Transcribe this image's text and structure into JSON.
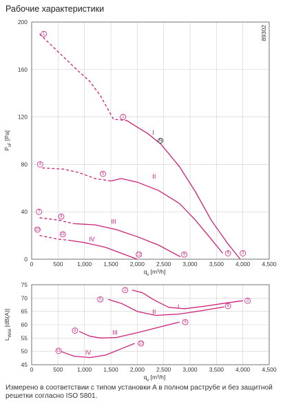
{
  "title": "Рабочие характеристики",
  "footnote": "Измерено в соответствии с типом установки A в полном раструбе и без защитной решетки согласно ISO 5801.",
  "chart_data": [
    {
      "type": "line",
      "id": "pressure",
      "ylabel": "P_sF [Pa]",
      "xlabel": "q_v [m³/h]",
      "xlim": [
        0,
        4500
      ],
      "ylim": [
        0,
        200
      ],
      "xticks": [
        0,
        500,
        1000,
        1500,
        2000,
        2500,
        3000,
        3500,
        4000,
        4500
      ],
      "yticks": [
        0,
        40,
        80,
        120,
        160,
        200
      ],
      "x_tick_labels": [
        "0",
        "500",
        "1,000",
        "1,500",
        "2,000",
        "2,500",
        "3,000",
        "3,500",
        "4,000",
        "4,500"
      ],
      "y_tick_labels": [
        "0",
        "40",
        "80",
        "120",
        "160",
        "200"
      ],
      "grid": true,
      "code": "89302",
      "series": [
        {
          "name": "I",
          "label_at": [
            2300,
            105
          ],
          "dashed": [
            [
              150,
              190
            ],
            [
              500,
              175
            ],
            [
              900,
              158
            ],
            [
              1100,
              150
            ],
            [
              1300,
              138
            ],
            [
              1450,
              126
            ],
            [
              1550,
              118
            ],
            [
              1800,
              117
            ]
          ],
          "solid": [
            [
              1800,
              117
            ],
            [
              2050,
              110
            ],
            [
              2200,
              106
            ],
            [
              2450,
              97
            ],
            [
              2800,
              78
            ],
            [
              3100,
              57
            ],
            [
              3400,
              33
            ],
            [
              3700,
              14
            ],
            [
              3950,
              0
            ]
          ]
        },
        {
          "name": "II",
          "label_at": [
            2320,
            68
          ],
          "dashed": [
            [
              200,
              77
            ],
            [
              600,
              76
            ],
            [
              900,
              73
            ],
            [
              1200,
              68
            ],
            [
              1500,
              66
            ]
          ],
          "solid": [
            [
              1500,
              66
            ],
            [
              1700,
              68
            ],
            [
              2000,
              65
            ],
            [
              2400,
              58
            ],
            [
              2800,
              47
            ],
            [
              3100,
              33
            ],
            [
              3400,
              17
            ],
            [
              3620,
              5
            ]
          ]
        },
        {
          "name": "III",
          "label_at": [
            1550,
            30
          ],
          "dashed": [
            [
              150,
              35
            ],
            [
              500,
              33
            ],
            [
              800,
              30
            ]
          ],
          "solid": [
            [
              800,
              30
            ],
            [
              1200,
              29
            ],
            [
              1600,
              25
            ],
            [
              2000,
              19
            ],
            [
              2400,
              12
            ],
            [
              2820,
              2
            ]
          ]
        },
        {
          "name": "IV",
          "label_at": [
            1140,
            15
          ],
          "dashed": [
            [
              150,
              20
            ],
            [
              500,
              17
            ],
            [
              700,
              16
            ]
          ],
          "solid": [
            [
              700,
              16
            ],
            [
              1000,
              14
            ],
            [
              1400,
              10
            ],
            [
              1700,
              5
            ],
            [
              2000,
              0
            ]
          ]
        }
      ],
      "points": [
        {
          "id": "1",
          "x": 230,
          "y": 190,
          "kind": "point"
        },
        {
          "id": "2",
          "x": 1730,
          "y": 120,
          "kind": "point"
        },
        {
          "id": "3",
          "x": 4000,
          "y": 5,
          "kind": "point"
        },
        {
          "id": "4",
          "x": 160,
          "y": 80,
          "kind": "point"
        },
        {
          "id": "5",
          "x": 1350,
          "y": 72,
          "kind": "point"
        },
        {
          "id": "6",
          "x": 3720,
          "y": 5,
          "kind": "point"
        },
        {
          "id": "7",
          "x": 140,
          "y": 40,
          "kind": "point"
        },
        {
          "id": "8",
          "x": 560,
          "y": 36,
          "kind": "point"
        },
        {
          "id": "9",
          "x": 2890,
          "y": 4,
          "kind": "point"
        },
        {
          "id": "10",
          "x": 110,
          "y": 25,
          "kind": "point"
        },
        {
          "id": "11",
          "x": 590,
          "y": 21,
          "kind": "point"
        },
        {
          "id": "12",
          "x": 2030,
          "y": 4,
          "kind": "point"
        },
        {
          "id": "N",
          "x": 2440,
          "y": 100,
          "kind": "nominal"
        }
      ]
    },
    {
      "type": "line",
      "id": "sound",
      "ylabel": "L_WA6 [dB(A)]",
      "xlabel": "q_v [m³/h]",
      "xlim": [
        0,
        4500
      ],
      "ylim": [
        45,
        75
      ],
      "xticks": [
        0,
        500,
        1000,
        1500,
        2000,
        2500,
        3000,
        3500,
        4000,
        4500
      ],
      "yticks": [
        45,
        50,
        55,
        60,
        65,
        70,
        75
      ],
      "x_tick_labels": [
        "0",
        "500",
        "1,000",
        "1,500",
        "2,000",
        "2,500",
        "3,000",
        "3,500",
        "4,000",
        "4,500"
      ],
      "y_tick_labels": [
        "45",
        "50",
        "55",
        "60",
        "65",
        "70",
        "75"
      ],
      "grid": true,
      "series": [
        {
          "name": "I",
          "label_at": [
            2780,
            66
          ],
          "solid": [
            [
              1900,
              73
            ],
            [
              2100,
              72
            ],
            [
              2300,
              69.5
            ],
            [
              2600,
              66.5
            ],
            [
              2900,
              66
            ],
            [
              3300,
              67
            ],
            [
              3700,
              68.2
            ],
            [
              4000,
              69
            ]
          ]
        },
        {
          "name": "II",
          "label_at": [
            2320,
            64
          ],
          "solid": [
            [
              1450,
              69.5
            ],
            [
              1700,
              68
            ],
            [
              2000,
              65
            ],
            [
              2350,
              63.5
            ],
            [
              2800,
              64
            ],
            [
              3200,
              65.2
            ],
            [
              3650,
              66.7
            ]
          ]
        },
        {
          "name": "III",
          "label_at": [
            1580,
            56.3
          ],
          "solid": [
            [
              900,
              57.5
            ],
            [
              1100,
              55.7
            ],
            [
              1300,
              55
            ],
            [
              1600,
              55.2
            ],
            [
              2000,
              57
            ],
            [
              2500,
              59.5
            ],
            [
              2800,
              61
            ]
          ]
        },
        {
          "name": "IV",
          "label_at": [
            1070,
            48.8
          ],
          "solid": [
            [
              550,
              50
            ],
            [
              800,
              48.2
            ],
            [
              1100,
              47.7
            ],
            [
              1400,
              48.6
            ],
            [
              1700,
              51
            ],
            [
              1950,
              53
            ]
          ]
        }
      ],
      "points": [
        {
          "id": "2",
          "x": 1770,
          "y": 73,
          "kind": "point"
        },
        {
          "id": "5",
          "x": 1300,
          "y": 69.5,
          "kind": "point"
        },
        {
          "id": "3",
          "x": 4090,
          "y": 69,
          "kind": "point"
        },
        {
          "id": "6",
          "x": 3720,
          "y": 67,
          "kind": "point"
        },
        {
          "id": "8",
          "x": 820,
          "y": 57.8,
          "kind": "point"
        },
        {
          "id": "9",
          "x": 2910,
          "y": 61,
          "kind": "point"
        },
        {
          "id": "11",
          "x": 510,
          "y": 50.2,
          "kind": "point"
        },
        {
          "id": "12",
          "x": 2070,
          "y": 53,
          "kind": "point"
        }
      ]
    }
  ]
}
